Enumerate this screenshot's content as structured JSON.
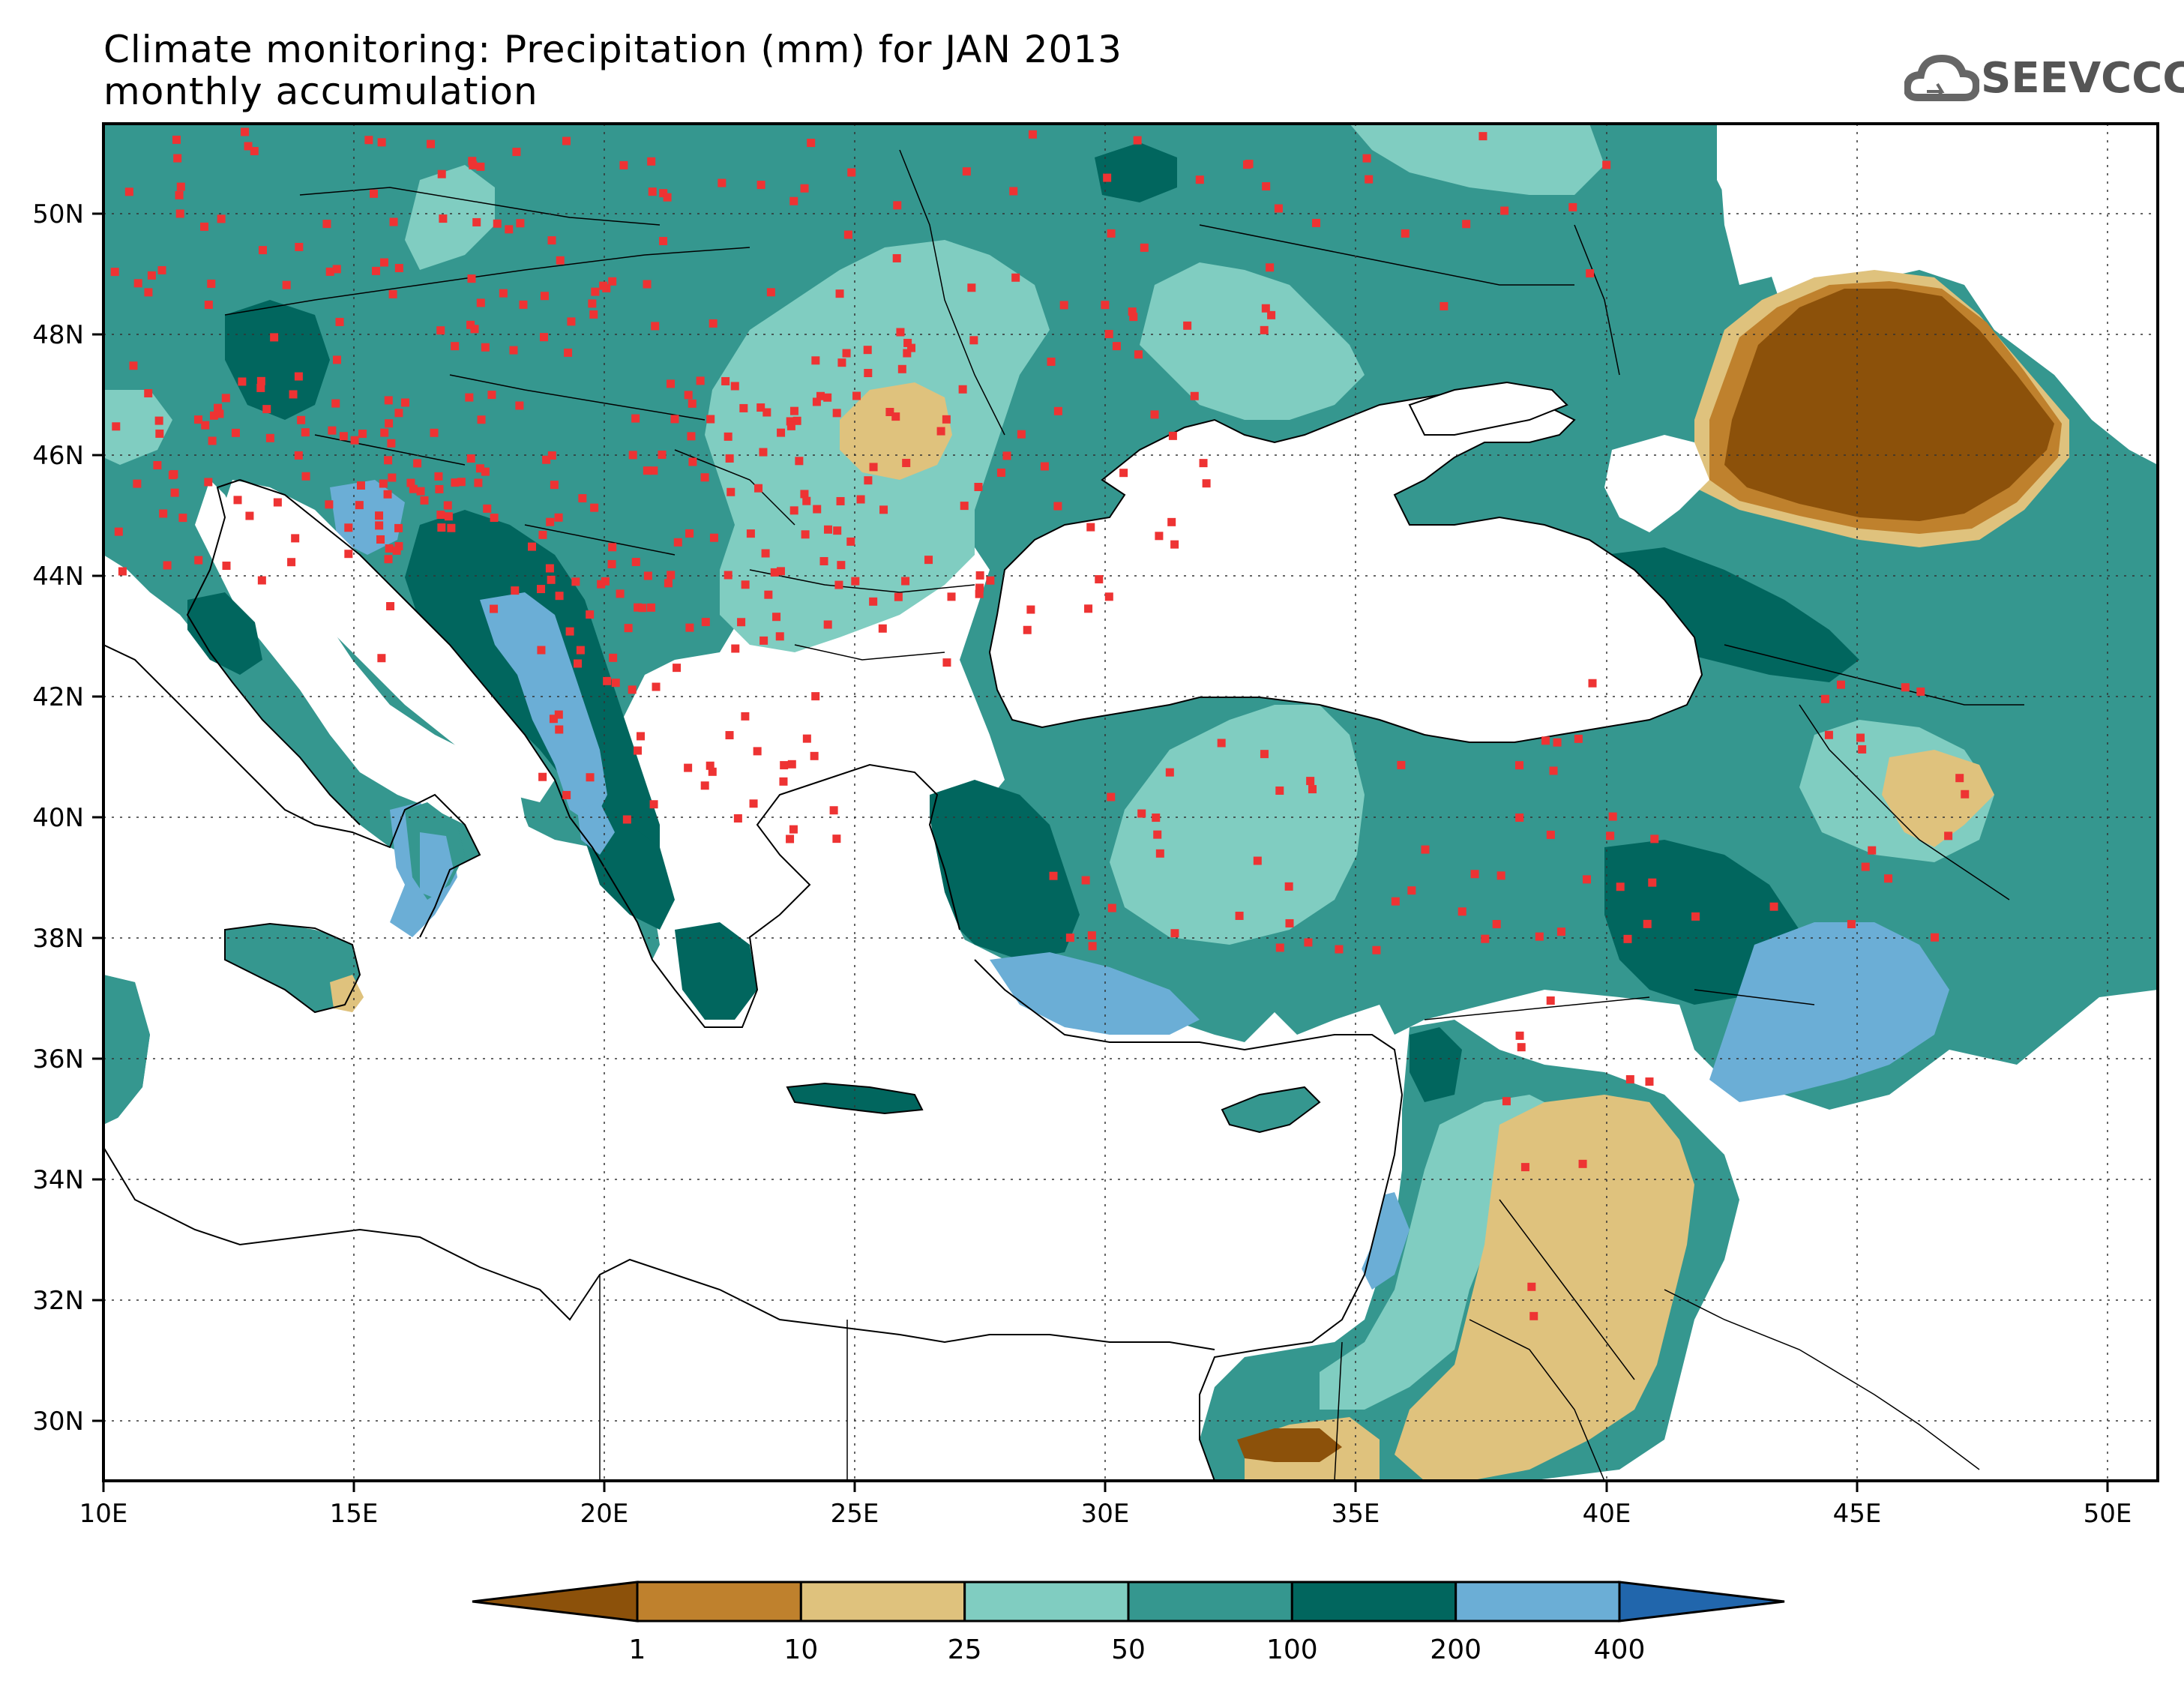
{
  "title": {
    "line1": "Climate monitoring: Precipitation (mm) for JAN 2013",
    "line2": "monthly accumulation"
  },
  "logo": {
    "text": "SEEVCCC",
    "icon": "cloud-icon"
  },
  "map": {
    "lon_range": [
      10,
      51
    ],
    "lat_range": [
      29,
      51.5
    ],
    "x_ticks": [
      "10E",
      "15E",
      "20E",
      "25E",
      "30E",
      "35E",
      "40E",
      "45E",
      "50E"
    ],
    "y_ticks": [
      "30N",
      "32N",
      "34N",
      "36N",
      "38N",
      "40N",
      "42N",
      "44N",
      "46N",
      "48N",
      "50N"
    ],
    "grid": "dotted",
    "station_marker_color": "#ee3333"
  },
  "colorbar": {
    "labels": [
      "1",
      "10",
      "25",
      "50",
      "100",
      "200",
      "400"
    ],
    "colors": [
      "#8c510a",
      "#bf812d",
      "#dfc27d",
      "#80cdc1",
      "#35978f",
      "#01665e",
      "#6baed6",
      "#2166ac"
    ]
  }
}
